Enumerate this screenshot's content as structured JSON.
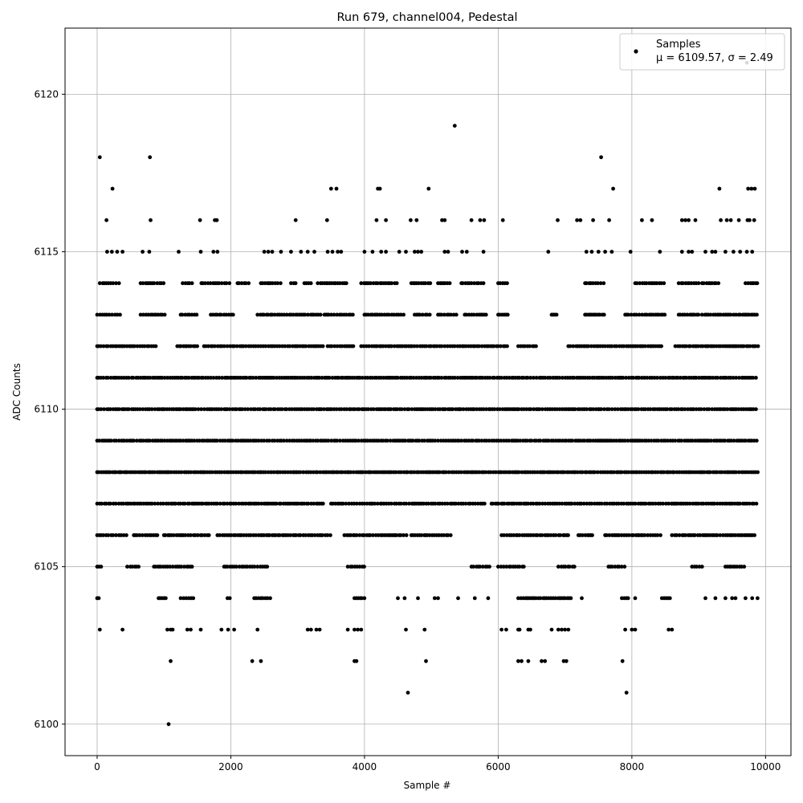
{
  "chart_data": {
    "type": "scatter",
    "title": "Run 679, channel004, Pedestal",
    "xlabel": "Sample #",
    "ylabel": "ADC Counts",
    "xlim": [
      -480,
      10380
    ],
    "ylim": [
      6099.0,
      6122.1
    ],
    "xticks": [
      0,
      2000,
      4000,
      6000,
      8000,
      10000
    ],
    "yticks": [
      6100,
      6105,
      6110,
      6115,
      6120
    ],
    "grid": true,
    "legend_position": "top-right",
    "series": [
      {
        "name": "Samples",
        "color": "#000000",
        "stats_label": "μ = 6109.57, σ = 2.49",
        "mu": 6109.57,
        "sigma": 2.49,
        "n_samples": 10000,
        "x_range": [
          0,
          9890
        ],
        "levels": [
          {
            "y": 6114,
            "segments": [
              [
                40,
                350
              ],
              [
                650,
                1000
              ],
              [
                1280,
                1420
              ],
              [
                1560,
                2000
              ],
              [
                2100,
                2300
              ],
              [
                2450,
                2750
              ],
              [
                2900,
                3000
              ],
              [
                3100,
                3200
              ],
              [
                3300,
                3750
              ],
              [
                3950,
                4500
              ],
              [
                4700,
                5000
              ],
              [
                5100,
                5300
              ],
              [
                5450,
                5800
              ],
              [
                6000,
                6150
              ],
              [
                7300,
                7600
              ],
              [
                8050,
                8500
              ],
              [
                8700,
                9000
              ],
              [
                9050,
                9300
              ],
              [
                9700,
                9890
              ]
            ]
          },
          {
            "y": 6113,
            "segments": [
              [
                0,
                350
              ],
              [
                650,
                1050
              ],
              [
                1250,
                1500
              ],
              [
                1700,
                2050
              ],
              [
                2400,
                2600
              ],
              [
                2600,
                3350
              ],
              [
                3400,
                3850
              ],
              [
                4000,
                4600
              ],
              [
                4750,
                5000
              ],
              [
                5100,
                5400
              ],
              [
                5500,
                5850
              ],
              [
                6000,
                6150
              ],
              [
                6800,
                6900
              ],
              [
                7300,
                7600
              ],
              [
                7900,
                8500
              ],
              [
                8700,
                9000
              ],
              [
                9050,
                9890
              ]
            ]
          },
          {
            "y": 6112,
            "segments": [
              [
                0,
                900
              ],
              [
                1200,
                1500
              ],
              [
                1600,
                2050
              ],
              [
                2050,
                3400
              ],
              [
                3450,
                3850
              ],
              [
                3950,
                6150
              ],
              [
                6300,
                6600
              ],
              [
                7050,
                8450
              ],
              [
                8650,
                9890
              ]
            ]
          },
          {
            "y": 6111,
            "segments": [
              [
                0,
                9890
              ]
            ]
          },
          {
            "y": 6110,
            "segments": [
              [
                0,
                9890
              ]
            ]
          },
          {
            "y": 6109,
            "segments": [
              [
                0,
                9890
              ]
            ]
          },
          {
            "y": 6108,
            "segments": [
              [
                0,
                9890
              ]
            ]
          },
          {
            "y": 6107,
            "segments": [
              [
                0,
                3400
              ],
              [
                3500,
                5800
              ],
              [
                5900,
                9890
              ]
            ]
          },
          {
            "y": 6106,
            "segments": [
              [
                0,
                450
              ],
              [
                550,
                900
              ],
              [
                1000,
                1700
              ],
              [
                1800,
                3500
              ],
              [
                3700,
                4650
              ],
              [
                4700,
                5300
              ],
              [
                6050,
                7050
              ],
              [
                7200,
                7450
              ],
              [
                7600,
                8450
              ],
              [
                8600,
                9850
              ]
            ]
          },
          {
            "y": 6105,
            "segments": [
              [
                0,
                80
              ],
              [
                450,
                650
              ],
              [
                850,
                1450
              ],
              [
                1900,
                2550
              ],
              [
                3750,
                4000
              ],
              [
                5600,
                5900
              ],
              [
                6000,
                6400
              ],
              [
                6900,
                7150
              ],
              [
                7650,
                7900
              ],
              [
                8900,
                9050
              ],
              [
                9400,
                9700
              ]
            ]
          },
          {
            "y": 6104,
            "segments": [
              [
                0,
                40
              ],
              [
                920,
                1050
              ],
              [
                1250,
                1450
              ],
              [
                1950,
                2000
              ],
              [
                2350,
                2600
              ],
              [
                3850,
                4000
              ],
              [
                6300,
                6950
              ],
              [
                6950,
                7100
              ],
              [
                7850,
                7950
              ],
              [
                8450,
                8600
              ]
            ]
          }
        ],
        "points": [
          [
            40,
            6103
          ],
          [
            380,
            6103
          ],
          [
            1050,
            6103
          ],
          [
            1100,
            6103
          ],
          [
            1130,
            6103
          ],
          [
            1350,
            6103
          ],
          [
            1400,
            6103
          ],
          [
            1550,
            6103
          ],
          [
            1860,
            6103
          ],
          [
            1960,
            6103
          ],
          [
            2050,
            6103
          ],
          [
            2400,
            6103
          ],
          [
            3150,
            6103
          ],
          [
            3200,
            6103
          ],
          [
            3280,
            6103
          ],
          [
            3330,
            6103
          ],
          [
            3750,
            6103
          ],
          [
            3850,
            6103
          ],
          [
            3900,
            6103
          ],
          [
            3950,
            6103
          ],
          [
            4620,
            6103
          ],
          [
            4900,
            6103
          ],
          [
            6050,
            6103
          ],
          [
            6120,
            6103
          ],
          [
            6300,
            6103
          ],
          [
            6320,
            6103
          ],
          [
            6450,
            6103
          ],
          [
            6480,
            6103
          ],
          [
            6800,
            6103
          ],
          [
            6900,
            6103
          ],
          [
            6950,
            6103
          ],
          [
            7000,
            6103
          ],
          [
            7050,
            6103
          ],
          [
            7900,
            6103
          ],
          [
            8000,
            6103
          ],
          [
            8050,
            6103
          ],
          [
            8550,
            6103
          ],
          [
            8600,
            6103
          ],
          [
            4500,
            6104
          ],
          [
            4600,
            6104
          ],
          [
            4800,
            6104
          ],
          [
            5050,
            6104
          ],
          [
            5100,
            6104
          ],
          [
            5400,
            6104
          ],
          [
            5650,
            6104
          ],
          [
            5850,
            6104
          ],
          [
            7250,
            6104
          ],
          [
            8050,
            6104
          ],
          [
            9100,
            6104
          ],
          [
            9250,
            6104
          ],
          [
            9400,
            6104
          ],
          [
            9500,
            6104
          ],
          [
            9550,
            6104
          ],
          [
            9700,
            6104
          ],
          [
            9800,
            6104
          ],
          [
            9880,
            6104
          ],
          [
            1100,
            6102
          ],
          [
            2320,
            6102
          ],
          [
            2450,
            6102
          ],
          [
            3850,
            6102
          ],
          [
            3880,
            6102
          ],
          [
            4920,
            6102
          ],
          [
            6300,
            6102
          ],
          [
            6350,
            6102
          ],
          [
            6450,
            6102
          ],
          [
            6650,
            6102
          ],
          [
            6700,
            6102
          ],
          [
            6980,
            6102
          ],
          [
            7020,
            6102
          ],
          [
            7860,
            6102
          ],
          [
            4650,
            6101
          ],
          [
            7920,
            6101
          ],
          [
            1070,
            6100
          ],
          [
            150,
            6115
          ],
          [
            220,
            6115
          ],
          [
            300,
            6115
          ],
          [
            380,
            6115
          ],
          [
            680,
            6115
          ],
          [
            780,
            6115
          ],
          [
            1220,
            6115
          ],
          [
            1550,
            6115
          ],
          [
            1740,
            6115
          ],
          [
            1800,
            6115
          ],
          [
            2500,
            6115
          ],
          [
            2560,
            6115
          ],
          [
            2620,
            6115
          ],
          [
            2750,
            6115
          ],
          [
            2900,
            6115
          ],
          [
            3050,
            6115
          ],
          [
            3150,
            6115
          ],
          [
            3250,
            6115
          ],
          [
            3450,
            6115
          ],
          [
            3520,
            6115
          ],
          [
            3600,
            6115
          ],
          [
            3650,
            6115
          ],
          [
            4000,
            6115
          ],
          [
            4120,
            6115
          ],
          [
            4250,
            6115
          ],
          [
            4320,
            6115
          ],
          [
            4520,
            6115
          ],
          [
            4620,
            6115
          ],
          [
            4750,
            6115
          ],
          [
            4800,
            6115
          ],
          [
            4850,
            6115
          ],
          [
            5200,
            6115
          ],
          [
            5250,
            6115
          ],
          [
            5460,
            6115
          ],
          [
            5530,
            6115
          ],
          [
            5780,
            6115
          ],
          [
            6750,
            6115
          ],
          [
            7320,
            6115
          ],
          [
            7400,
            6115
          ],
          [
            7500,
            6115
          ],
          [
            7600,
            6115
          ],
          [
            7700,
            6115
          ],
          [
            7980,
            6115
          ],
          [
            8420,
            6115
          ],
          [
            8750,
            6115
          ],
          [
            8850,
            6115
          ],
          [
            8900,
            6115
          ],
          [
            9100,
            6115
          ],
          [
            9200,
            6115
          ],
          [
            9250,
            6115
          ],
          [
            9400,
            6115
          ],
          [
            9520,
            6115
          ],
          [
            9620,
            6115
          ],
          [
            9720,
            6115
          ],
          [
            9800,
            6115
          ],
          [
            140,
            6116
          ],
          [
            1540,
            6116
          ],
          [
            1760,
            6116
          ],
          [
            1790,
            6116
          ],
          [
            800,
            6116
          ],
          [
            2970,
            6116
          ],
          [
            3440,
            6116
          ],
          [
            4180,
            6116
          ],
          [
            4320,
            6116
          ],
          [
            4690,
            6116
          ],
          [
            4780,
            6116
          ],
          [
            5160,
            6116
          ],
          [
            5200,
            6116
          ],
          [
            5600,
            6116
          ],
          [
            5730,
            6116
          ],
          [
            5790,
            6116
          ],
          [
            6070,
            6116
          ],
          [
            6890,
            6116
          ],
          [
            7180,
            6116
          ],
          [
            7230,
            6116
          ],
          [
            7420,
            6116
          ],
          [
            7660,
            6116
          ],
          [
            8150,
            6116
          ],
          [
            8300,
            6116
          ],
          [
            8750,
            6116
          ],
          [
            8800,
            6116
          ],
          [
            8850,
            6116
          ],
          [
            8950,
            6116
          ],
          [
            9330,
            6116
          ],
          [
            9420,
            6116
          ],
          [
            9480,
            6116
          ],
          [
            9600,
            6116
          ],
          [
            9730,
            6116
          ],
          [
            9760,
            6116
          ],
          [
            9830,
            6116
          ],
          [
            230,
            6117
          ],
          [
            3500,
            6117
          ],
          [
            3580,
            6117
          ],
          [
            4200,
            6117
          ],
          [
            4230,
            6117
          ],
          [
            4960,
            6117
          ],
          [
            7720,
            6117
          ],
          [
            9310,
            6117
          ],
          [
            9740,
            6117
          ],
          [
            9790,
            6117
          ],
          [
            9840,
            6117
          ],
          [
            40,
            6118
          ],
          [
            790,
            6118
          ],
          [
            7540,
            6118
          ],
          [
            5350,
            6119
          ],
          [
            9720,
            6121
          ]
        ]
      }
    ]
  }
}
